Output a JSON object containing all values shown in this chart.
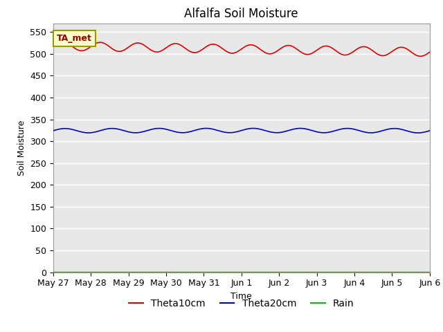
{
  "title": "Alfalfa Soil Moisture",
  "xlabel": "Time",
  "ylabel": "Soil Moisture",
  "annotation": "TA_met",
  "ylim": [
    0,
    570
  ],
  "yticks": [
    0,
    50,
    100,
    150,
    200,
    250,
    300,
    350,
    400,
    450,
    500,
    550
  ],
  "x_labels": [
    "May 27",
    "May 28",
    "May 29",
    "May 30",
    "May 31",
    "Jun 1",
    "Jun 2",
    "Jun 3",
    "Jun 4",
    "Jun 5",
    "Jun 6"
  ],
  "n_points": 2200,
  "theta10_base": 518,
  "theta10_amplitude": 10,
  "theta10_freq": 10.0,
  "theta10_trend": -14.0,
  "theta20_base": 324,
  "theta20_amplitude": 5,
  "theta20_freq": 8.0,
  "theta20_trend": 0.5,
  "rain_value": 0,
  "color_theta10": "#dd0000",
  "color_theta20": "#0000cc",
  "color_rain": "#00bb00",
  "plot_bg_color": "#e8e8e8",
  "fig_bg_color": "#ffffff",
  "grid_color": "#ffffff",
  "title_fontsize": 12,
  "axis_label_fontsize": 9,
  "tick_fontsize": 9,
  "legend_fontsize": 10
}
